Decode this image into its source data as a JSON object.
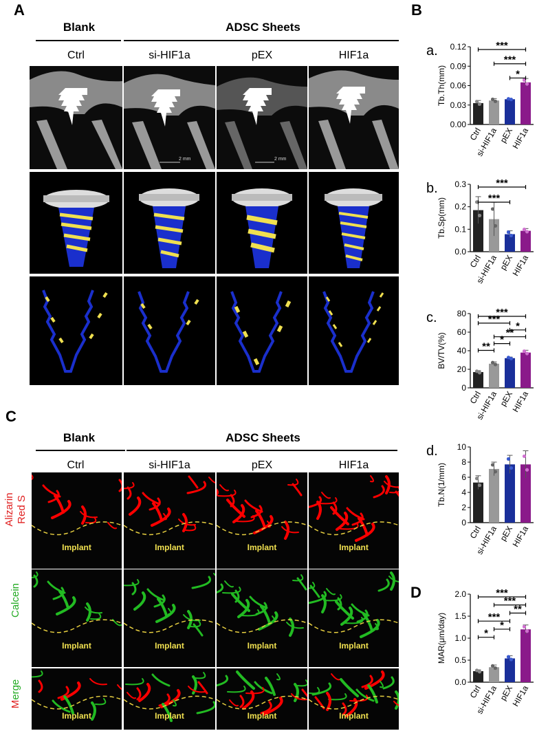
{
  "figure": {
    "panel_a_label": "A",
    "panel_b_label": "B",
    "panel_c_label": "C",
    "panel_d_label": "D",
    "group_blank": "Blank",
    "group_adsc": "ADSC Sheets",
    "groups": [
      "Ctrl",
      "si-HIF1a",
      "pEX",
      "HIF1a"
    ],
    "scalebar_label": "2 mm",
    "implant_label": "Implant",
    "row_labels_c": {
      "row1_a": "Alizarin",
      "row1_b": "Red S",
      "row2": "Calcein",
      "row3_a": "M",
      "row3_b": "erge"
    }
  },
  "colors": {
    "ctrl": "#222222",
    "si": "#999999",
    "pex": "#1a2f9a",
    "hif": "#8a1a8a",
    "red": "#ff0000",
    "green": "#22bb22",
    "yellow": "#f0e050",
    "blue": "#1a2fcc"
  },
  "chart_data": [
    {
      "type": "bar",
      "sublabel": "a.",
      "ylabel": "Tb.Th(mm)",
      "categories": [
        "Ctrl",
        "si-HIF1a",
        "pEX",
        "HIF1a"
      ],
      "values": [
        0.033,
        0.037,
        0.039,
        0.065
      ],
      "errors": [
        0.004,
        0.003,
        0.001,
        0.006
      ],
      "ylim": [
        0,
        0.12
      ],
      "yticks": [
        "0.00",
        "0.03",
        "0.06",
        "0.09",
        "0.12"
      ],
      "significance": [
        {
          "from": 0,
          "to": 3,
          "label": "***"
        },
        {
          "from": 1,
          "to": 3,
          "label": "***"
        },
        {
          "from": 2,
          "to": 3,
          "label": "*"
        }
      ]
    },
    {
      "type": "bar",
      "sublabel": "b.",
      "ylabel": "Tb.Sp(mm)",
      "categories": [
        "Ctrl",
        "si-HIF1a",
        "pEX",
        "HIF1a"
      ],
      "values": [
        0.185,
        0.145,
        0.078,
        0.093
      ],
      "errors": [
        0.06,
        0.075,
        0.015,
        0.01
      ],
      "ylim": [
        0,
        0.3
      ],
      "yticks": [
        "0.0",
        "0.1",
        "0.2",
        "0.3"
      ],
      "significance": [
        {
          "from": 0,
          "to": 3,
          "label": "***"
        },
        {
          "from": 0,
          "to": 2,
          "label": "***"
        }
      ]
    },
    {
      "type": "bar",
      "sublabel": "c.",
      "ylabel": "BV/TV(%)",
      "categories": [
        "Ctrl",
        "si-HIF1a",
        "pEX",
        "HIF1a"
      ],
      "values": [
        17,
        26,
        32,
        38
      ],
      "errors": [
        1.5,
        2,
        1.2,
        2.5
      ],
      "ylim": [
        0,
        80
      ],
      "yticks": [
        "0",
        "20",
        "40",
        "60",
        "80"
      ],
      "significance": [
        {
          "from": 0,
          "to": 3,
          "label": "***"
        },
        {
          "from": 0,
          "to": 2,
          "label": "***"
        },
        {
          "from": 2,
          "to": 3,
          "label": "*"
        },
        {
          "from": 1,
          "to": 3,
          "label": "**"
        },
        {
          "from": 1,
          "to": 2,
          "label": "*"
        },
        {
          "from": 0,
          "to": 1,
          "label": "**"
        }
      ]
    },
    {
      "type": "bar",
      "sublabel": "d.",
      "ylabel": "Tb.N(1/mm)",
      "categories": [
        "Ctrl",
        "si-HIF1a",
        "pEX",
        "HIF1a"
      ],
      "values": [
        5.3,
        7.1,
        7.7,
        7.7
      ],
      "errors": [
        0.9,
        0.9,
        1.2,
        1.8
      ],
      "ylim": [
        0,
        10
      ],
      "yticks": [
        "0",
        "2",
        "4",
        "6",
        "8",
        "10"
      ],
      "significance": []
    },
    {
      "type": "bar",
      "sublabel": "",
      "ylabel": "MAR(μm/day)",
      "categories": [
        "Ctrl",
        "si-HIF1a",
        "pEX",
        "HIF1a"
      ],
      "values": [
        0.25,
        0.34,
        0.54,
        1.2
      ],
      "errors": [
        0.03,
        0.05,
        0.06,
        0.1
      ],
      "ylim": [
        0,
        2.0
      ],
      "yticks": [
        "0.0",
        "0.5",
        "1.0",
        "1.5",
        "2.0"
      ],
      "significance": [
        {
          "from": 0,
          "to": 3,
          "label": "***"
        },
        {
          "from": 1,
          "to": 3,
          "label": "***"
        },
        {
          "from": 2,
          "to": 3,
          "label": "**"
        },
        {
          "from": 0,
          "to": 2,
          "label": "***"
        },
        {
          "from": 1,
          "to": 2,
          "label": "*"
        },
        {
          "from": 0,
          "to": 1,
          "label": "*"
        }
      ]
    }
  ]
}
